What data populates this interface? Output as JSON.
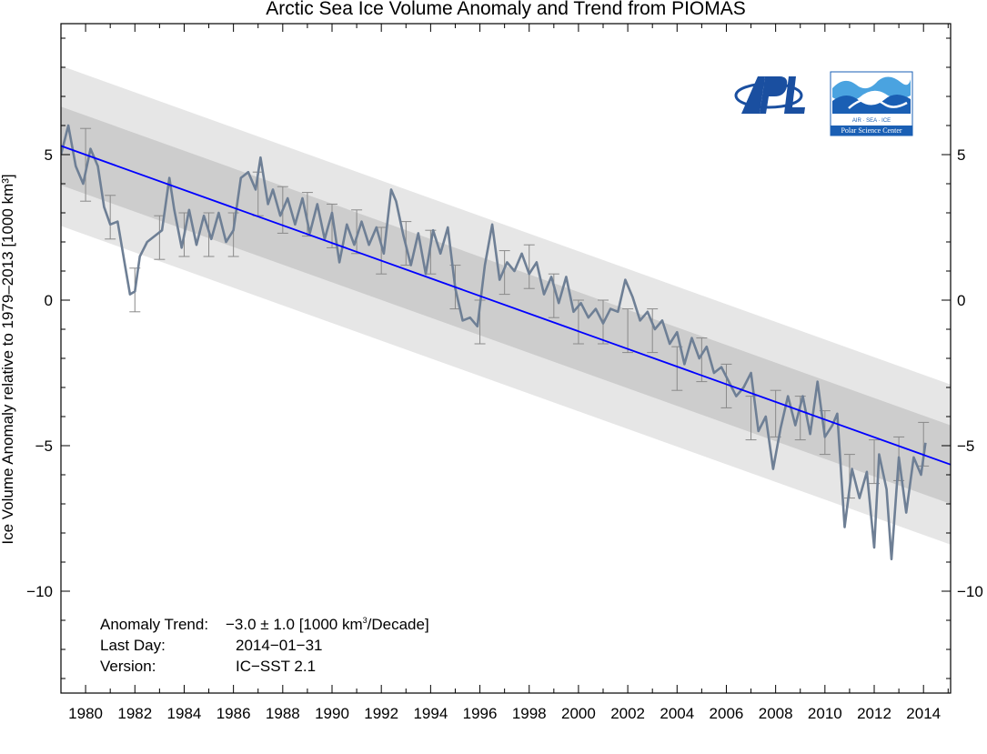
{
  "chart_data": {
    "type": "line",
    "title": "Arctic Sea Ice Volume Anomaly and Trend from PIOMAS",
    "ylabel": "Ice Volume Anomaly relative to 1979–2013 [1000 km³]",
    "xlabel": "",
    "xlim": [
      1979.0,
      2015.1
    ],
    "ylim": [
      -13.5,
      9.5
    ],
    "x_ticks": [
      1980,
      1982,
      1984,
      1986,
      1988,
      1990,
      1992,
      1994,
      1996,
      1998,
      2000,
      2002,
      2004,
      2006,
      2008,
      2010,
      2012,
      2014
    ],
    "y_ticks": [
      -10,
      -5,
      0,
      5
    ],
    "y_tick_labels": [
      "−10",
      "−5",
      "0",
      "5"
    ],
    "trend": {
      "x": [
        1979.0,
        2015.1
      ],
      "y": [
        5.3,
        -5.65
      ],
      "color": "#0000ff"
    },
    "bands": [
      {
        "name": "outer",
        "halfwidth": 2.75,
        "color": "#e6e6e6"
      },
      {
        "name": "inner",
        "halfwidth": 1.35,
        "color": "#cdcdcd"
      }
    ],
    "series": [
      {
        "color": "#6e7f95",
        "x": [
          1979.0,
          1979.3,
          1979.6,
          1979.9,
          1980.2,
          1980.5,
          1980.75,
          1981.0,
          1981.3,
          1981.6,
          1981.8,
          1982.0,
          1982.2,
          1982.5,
          1982.8,
          1983.1,
          1983.4,
          1983.6,
          1983.9,
          1984.2,
          1984.5,
          1984.8,
          1985.1,
          1985.4,
          1985.7,
          1986.0,
          1986.3,
          1986.6,
          1986.9,
          1987.1,
          1987.4,
          1987.6,
          1987.9,
          1988.2,
          1988.5,
          1988.8,
          1989.1,
          1989.4,
          1989.7,
          1990.0,
          1990.3,
          1990.6,
          1990.9,
          1991.2,
          1991.5,
          1991.8,
          1992.1,
          1992.4,
          1992.6,
          1992.9,
          1993.2,
          1993.5,
          1993.8,
          1994.1,
          1994.4,
          1994.7,
          1995.0,
          1995.3,
          1995.6,
          1995.9,
          1996.2,
          1996.5,
          1996.8,
          1997.1,
          1997.4,
          1997.7,
          1998.0,
          1998.3,
          1998.6,
          1998.9,
          1999.2,
          1999.5,
          1999.8,
          2000.1,
          2000.4,
          2000.7,
          2001.0,
          2001.3,
          2001.6,
          2001.9,
          2002.2,
          2002.5,
          2002.8,
          2003.1,
          2003.4,
          2003.7,
          2004.0,
          2004.3,
          2004.6,
          2004.9,
          2005.2,
          2005.5,
          2005.8,
          2006.1,
          2006.4,
          2006.7,
          2007.0,
          2007.3,
          2007.6,
          2007.9,
          2008.2,
          2008.5,
          2008.8,
          2009.1,
          2009.4,
          2009.7,
          2010.0,
          2010.3,
          2010.5,
          2010.8,
          2011.1,
          2011.4,
          2011.7,
          2012.0,
          2012.2,
          2012.5,
          2012.7,
          2013.0,
          2013.3,
          2013.6,
          2013.9,
          2014.08
        ],
        "y": [
          5.0,
          6.0,
          4.6,
          4.0,
          5.2,
          4.6,
          3.2,
          2.6,
          2.7,
          1.2,
          0.2,
          0.3,
          1.5,
          2.0,
          2.2,
          2.4,
          4.2,
          3.1,
          1.8,
          3.1,
          1.9,
          2.9,
          2.1,
          3.0,
          2.0,
          2.4,
          4.2,
          4.4,
          3.8,
          4.9,
          3.3,
          3.8,
          2.9,
          3.5,
          2.6,
          3.5,
          2.3,
          3.3,
          2.1,
          3.0,
          1.3,
          2.6,
          1.9,
          2.7,
          1.9,
          2.5,
          1.6,
          3.8,
          3.4,
          2.2,
          1.2,
          2.3,
          0.9,
          2.4,
          1.6,
          2.5,
          0.4,
          -0.7,
          -0.6,
          -0.9,
          1.2,
          2.6,
          0.7,
          1.3,
          1.0,
          1.6,
          0.9,
          1.3,
          0.2,
          0.8,
          -0.1,
          0.8,
          -0.4,
          -0.1,
          -0.6,
          -0.3,
          -0.8,
          -0.3,
          -0.4,
          0.7,
          0.1,
          -0.7,
          -0.4,
          -1.0,
          -0.7,
          -1.5,
          -1.1,
          -2.2,
          -1.3,
          -2.0,
          -1.6,
          -2.5,
          -2.3,
          -2.8,
          -3.3,
          -3.0,
          -2.5,
          -4.5,
          -4.0,
          -5.8,
          -4.4,
          -3.3,
          -4.3,
          -3.3,
          -4.6,
          -2.8,
          -4.7,
          -4.3,
          -3.9,
          -7.8,
          -5.8,
          -6.8,
          -5.9,
          -8.5,
          -5.3,
          -6.5,
          -8.9,
          -5.4,
          -7.3,
          -5.4,
          -6.0,
          -4.9
        ]
      }
    ],
    "error_bars": [
      {
        "x": 1980.0,
        "lo": 3.4,
        "hi": 5.9
      },
      {
        "x": 1981.0,
        "lo": 2.1,
        "hi": 3.6
      },
      {
        "x": 1982.0,
        "lo": -0.4,
        "hi": 1.1
      },
      {
        "x": 1983.0,
        "lo": 1.4,
        "hi": 2.9
      },
      {
        "x": 1984.0,
        "lo": 1.5,
        "hi": 3.0
      },
      {
        "x": 1985.0,
        "lo": 1.5,
        "hi": 3.0
      },
      {
        "x": 1986.0,
        "lo": 1.5,
        "hi": 3.0
      },
      {
        "x": 1987.0,
        "lo": 2.9,
        "hi": 4.4
      },
      {
        "x": 1988.0,
        "lo": 2.3,
        "hi": 3.9
      },
      {
        "x": 1989.0,
        "lo": 2.2,
        "hi": 3.7
      },
      {
        "x": 1990.0,
        "lo": 1.8,
        "hi": 3.3
      },
      {
        "x": 1991.0,
        "lo": 1.6,
        "hi": 3.1
      },
      {
        "x": 1992.0,
        "lo": 0.9,
        "hi": 2.5
      },
      {
        "x": 1993.0,
        "lo": 1.2,
        "hi": 2.7
      },
      {
        "x": 1994.0,
        "lo": 0.9,
        "hi": 2.4
      },
      {
        "x": 1995.0,
        "lo": -0.3,
        "hi": 1.2
      },
      {
        "x": 1996.0,
        "lo": -1.5,
        "hi": 0.0
      },
      {
        "x": 1997.0,
        "lo": 0.2,
        "hi": 1.7
      },
      {
        "x": 1998.0,
        "lo": 0.4,
        "hi": 1.9
      },
      {
        "x": 1999.0,
        "lo": -0.6,
        "hi": 0.9
      },
      {
        "x": 2000.0,
        "lo": -1.5,
        "hi": 0.0
      },
      {
        "x": 2001.0,
        "lo": -1.5,
        "hi": 0.0
      },
      {
        "x": 2002.0,
        "lo": -1.8,
        "hi": -0.3
      },
      {
        "x": 2003.0,
        "lo": -1.8,
        "hi": -0.3
      },
      {
        "x": 2004.0,
        "lo": -3.1,
        "hi": -1.6
      },
      {
        "x": 2005.0,
        "lo": -2.8,
        "hi": -1.3
      },
      {
        "x": 2006.0,
        "lo": -3.7,
        "hi": -2.2
      },
      {
        "x": 2007.0,
        "lo": -4.8,
        "hi": -3.3
      },
      {
        "x": 2008.0,
        "lo": -4.7,
        "hi": -3.1
      },
      {
        "x": 2009.0,
        "lo": -4.8,
        "hi": -3.3
      },
      {
        "x": 2010.0,
        "lo": -5.3,
        "hi": -3.8
      },
      {
        "x": 2011.0,
        "lo": -6.8,
        "hi": -5.3
      },
      {
        "x": 2012.0,
        "lo": -6.3,
        "hi": -4.8
      },
      {
        "x": 2013.0,
        "lo": -6.2,
        "hi": -4.7
      },
      {
        "x": 2014.0,
        "lo": -5.7,
        "hi": -4.2
      }
    ],
    "annotations": {
      "trend_label": "Anomaly Trend:",
      "trend_value": "−3.0 ± 1.0 [1000 km",
      "trend_sup": "3",
      "trend_unit": "/Decade]",
      "lastday_label": "Last Day:",
      "lastday_value": "2014−01−31",
      "version_label": "Version:",
      "version_value": "IC−SST 2.1"
    },
    "grid": false,
    "legend": "none"
  },
  "logos": {
    "apl_icon": "apl-logo-icon",
    "psc_line1": "AIR · SEA · ICE",
    "psc_line2": "Polar Science Center"
  }
}
